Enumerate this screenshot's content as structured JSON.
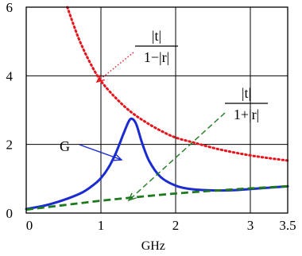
{
  "chart_data": {
    "type": "line",
    "xlabel": "GHz",
    "ylabel": "",
    "xlim": [
      0,
      3.5
    ],
    "ylim": [
      0,
      6
    ],
    "x_ticks": [
      "0",
      "1",
      "2",
      "3",
      "3.5"
    ],
    "y_ticks": [
      "0",
      "2",
      "4",
      "6"
    ],
    "grid": true,
    "series": [
      {
        "name": "|t| / (1 − |r|)",
        "style": "dotted",
        "color": "#e8141c",
        "x": [
          0.55,
          0.7,
          0.85,
          1.0,
          1.2,
          1.4,
          1.6,
          1.8,
          2.0,
          2.25,
          2.5,
          2.75,
          3.0,
          3.25,
          3.5
        ],
        "y": [
          6.0,
          5.1,
          4.4,
          3.85,
          3.35,
          2.95,
          2.65,
          2.4,
          2.2,
          2.05,
          1.9,
          1.78,
          1.68,
          1.6,
          1.53
        ]
      },
      {
        "name": "G",
        "style": "solid",
        "color": "#1a2bd1",
        "x": [
          0,
          0.25,
          0.5,
          0.75,
          0.9,
          1.0,
          1.1,
          1.2,
          1.3,
          1.38,
          1.43,
          1.48,
          1.55,
          1.65,
          1.8,
          2.0,
          2.2,
          2.5,
          2.8,
          3.0,
          3.25,
          3.5
        ],
        "y": [
          0.12,
          0.22,
          0.38,
          0.6,
          0.82,
          1.02,
          1.32,
          1.75,
          2.3,
          2.7,
          2.73,
          2.55,
          2.05,
          1.5,
          1.05,
          0.8,
          0.7,
          0.66,
          0.67,
          0.7,
          0.74,
          0.78
        ]
      },
      {
        "name": "|t| / (1 + |r|)",
        "style": "dashed",
        "color": "#1f7a1f",
        "x": [
          0,
          0.5,
          1.0,
          1.5,
          2.0,
          2.5,
          3.0,
          3.5
        ],
        "y": [
          0.1,
          0.23,
          0.36,
          0.47,
          0.57,
          0.65,
          0.72,
          0.78
        ]
      }
    ],
    "annotations": {
      "red_label": {
        "numerator": "|t|",
        "denominator": "1−|r|"
      },
      "green_label": {
        "numerator": "|t|",
        "denominator": "1+|r|"
      },
      "blue_label": "G"
    }
  }
}
